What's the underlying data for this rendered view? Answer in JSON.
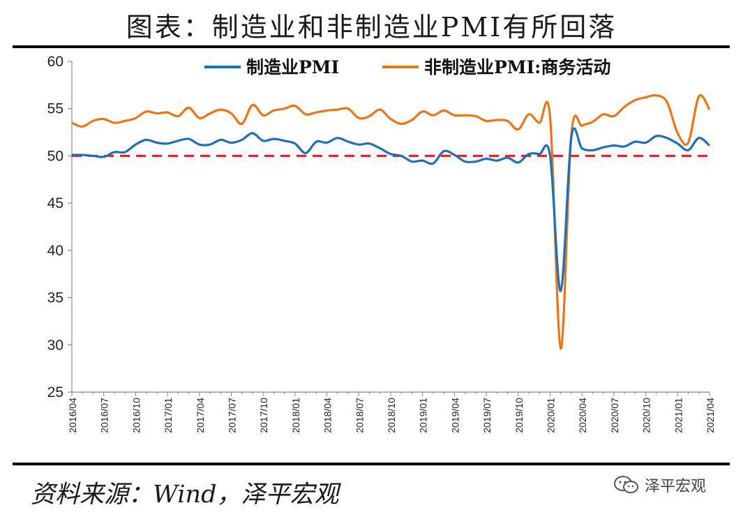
{
  "page": {
    "title": "图表：制造业和非制造业PMI有所回落",
    "source": "资料来源：Wind，泽平宏观",
    "watermark": "泽平宏观"
  },
  "chart_data": {
    "type": "line",
    "title": "图表：制造业和非制造业PMI有所回落",
    "xlabel": "",
    "ylabel": "",
    "ylim": [
      25,
      60
    ],
    "yticks": [
      25,
      30,
      35,
      40,
      45,
      50,
      55,
      60
    ],
    "xtick_labels": [
      "2016/04",
      "2016/07",
      "2016/10",
      "2017/01",
      "2017/04",
      "2017/07",
      "2017/10",
      "2018/01",
      "2018/04",
      "2018/07",
      "2018/10",
      "2019/01",
      "2019/04",
      "2019/07",
      "2019/10",
      "2020/01",
      "2020/04",
      "2020/07",
      "2020/10",
      "2021/01",
      "2021/04"
    ],
    "x": [
      "2016/04",
      "2016/05",
      "2016/06",
      "2016/07",
      "2016/08",
      "2016/09",
      "2016/10",
      "2016/11",
      "2016/12",
      "2017/01",
      "2017/02",
      "2017/03",
      "2017/04",
      "2017/05",
      "2017/06",
      "2017/07",
      "2017/08",
      "2017/09",
      "2017/10",
      "2017/11",
      "2017/12",
      "2018/01",
      "2018/02",
      "2018/03",
      "2018/04",
      "2018/05",
      "2018/06",
      "2018/07",
      "2018/08",
      "2018/09",
      "2018/10",
      "2018/11",
      "2018/12",
      "2019/01",
      "2019/02",
      "2019/03",
      "2019/04",
      "2019/05",
      "2019/06",
      "2019/07",
      "2019/08",
      "2019/09",
      "2019/10",
      "2019/11",
      "2019/12",
      "2020/01",
      "2020/02",
      "2020/03",
      "2020/04",
      "2020/05",
      "2020/06",
      "2020/07",
      "2020/08",
      "2020/09",
      "2020/10",
      "2020/11",
      "2020/12",
      "2021/01",
      "2021/02",
      "2021/03",
      "2021/04"
    ],
    "series": [
      {
        "name": "制造业PMI",
        "color": "#1f6fb5",
        "values": [
          50.1,
          50.1,
          50.0,
          49.9,
          50.4,
          50.4,
          51.2,
          51.7,
          51.4,
          51.3,
          51.6,
          51.8,
          51.2,
          51.2,
          51.7,
          51.4,
          51.7,
          52.4,
          51.6,
          51.8,
          51.6,
          51.3,
          50.3,
          51.5,
          51.4,
          51.9,
          51.5,
          51.2,
          51.3,
          50.8,
          50.2,
          50.0,
          49.4,
          49.5,
          49.2,
          50.5,
          50.1,
          49.4,
          49.4,
          49.7,
          49.5,
          49.8,
          49.3,
          50.2,
          50.2,
          50.0,
          35.7,
          52.0,
          50.8,
          50.6,
          50.9,
          51.1,
          51.0,
          51.5,
          51.4,
          52.1,
          51.9,
          51.3,
          50.6,
          51.9,
          51.1
        ]
      },
      {
        "name": "非制造业PMI:商务活动",
        "color": "#e8751a",
        "values": [
          53.5,
          53.1,
          53.7,
          53.9,
          53.5,
          53.7,
          54.0,
          54.7,
          54.5,
          54.6,
          54.2,
          55.1,
          54.0,
          54.5,
          54.9,
          54.5,
          53.4,
          55.4,
          54.3,
          54.8,
          55.0,
          55.3,
          54.4,
          54.6,
          54.8,
          54.9,
          55.0,
          54.0,
          54.2,
          54.9,
          53.9,
          53.4,
          53.8,
          54.7,
          54.3,
          54.8,
          54.3,
          54.3,
          54.2,
          53.7,
          53.8,
          53.7,
          52.8,
          54.4,
          53.5,
          54.1,
          29.6,
          52.3,
          53.2,
          53.6,
          54.4,
          54.2,
          55.2,
          55.9,
          56.2,
          56.4,
          55.7,
          52.4,
          51.4,
          56.3,
          54.9
        ]
      }
    ],
    "reference_line": {
      "y": 50,
      "style": "dashed",
      "color": "#e51c1c"
    },
    "legend_position": "top"
  }
}
